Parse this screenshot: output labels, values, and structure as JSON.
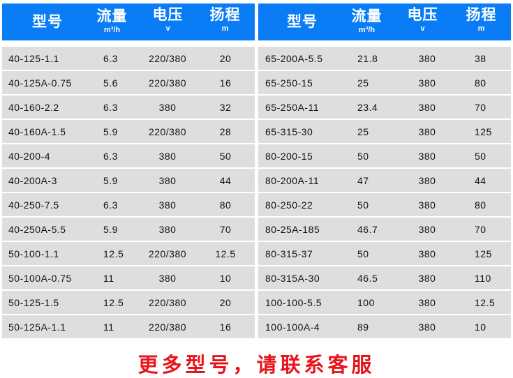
{
  "headers": {
    "model": "型号",
    "flow": "流量",
    "flow_unit": "m³/h",
    "voltage": "电压",
    "voltage_unit": "v",
    "head": "扬程",
    "head_unit": "m"
  },
  "left_rows": [
    [
      "40-125-1.1",
      "6.3",
      "220/380",
      "20"
    ],
    [
      "40-125A-0.75",
      "5.6",
      "220/380",
      "16"
    ],
    [
      "40-160-2.2",
      "6.3",
      "380",
      "32"
    ],
    [
      "40-160A-1.5",
      "5.9",
      "220/380",
      "28"
    ],
    [
      "40-200-4",
      "6.3",
      "380",
      "50"
    ],
    [
      "40-200A-3",
      "5.9",
      "380",
      "44"
    ],
    [
      "40-250-7.5",
      "6.3",
      "380",
      "80"
    ],
    [
      "40-250A-5.5",
      "5.9",
      "380",
      "70"
    ],
    [
      "50-100-1.1",
      "12.5",
      "220/380",
      "12.5"
    ],
    [
      "50-100A-0.75",
      "11",
      "380",
      "10"
    ],
    [
      "50-125-1.5",
      "12.5",
      "220/380",
      "20"
    ],
    [
      "50-125A-1.1",
      "11",
      "220/380",
      "16"
    ]
  ],
  "right_rows": [
    [
      "65-200A-5.5",
      "21.8",
      "380",
      "38"
    ],
    [
      "65-250-15",
      "25",
      "380",
      "80"
    ],
    [
      "65-250A-11",
      "23.4",
      "380",
      "70"
    ],
    [
      "65-315-30",
      "25",
      "380",
      "125"
    ],
    [
      "80-200-15",
      "50",
      "380",
      "50"
    ],
    [
      "80-200A-11",
      "47",
      "380",
      "44"
    ],
    [
      "80-250-22",
      "50",
      "380",
      "80"
    ],
    [
      "80-25A-185",
      "46.7",
      "380",
      "70"
    ],
    [
      "80-315-37",
      "50",
      "380",
      "125"
    ],
    [
      "80-315A-30",
      "46.5",
      "380",
      "110"
    ],
    [
      "100-100-5.5",
      "100",
      "380",
      "12.5"
    ],
    [
      "100-100A-4",
      "89",
      "380",
      "10"
    ]
  ],
  "footer": "更多型号，请联系客服",
  "colors": {
    "header": "#0a7cf6",
    "row": "#dedede",
    "footer": "#e8141c"
  }
}
